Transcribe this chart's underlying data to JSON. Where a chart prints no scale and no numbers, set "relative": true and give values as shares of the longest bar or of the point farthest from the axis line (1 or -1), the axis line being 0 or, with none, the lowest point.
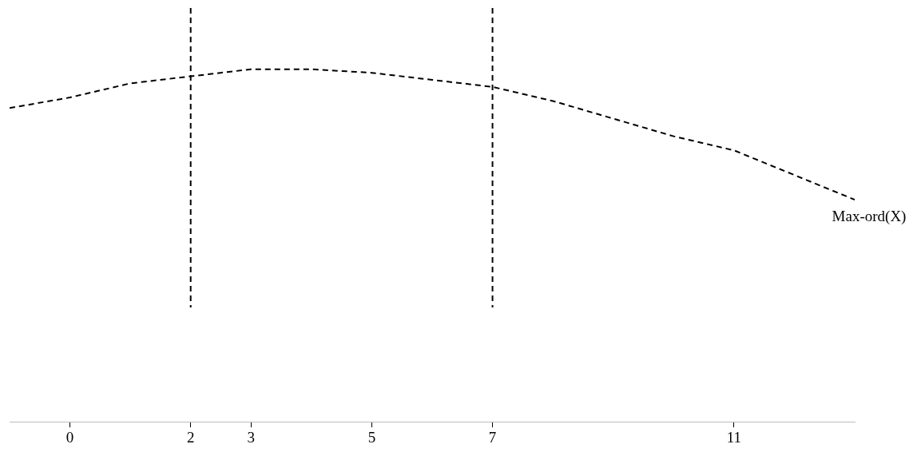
{
  "chart_data": {
    "type": "line",
    "relative": true,
    "x": [
      -1,
      0,
      1,
      2,
      3,
      4,
      5,
      6,
      7,
      8,
      9,
      10,
      11,
      12,
      13
    ],
    "xlim": [
      -1,
      13
    ],
    "xticks": [
      0,
      2,
      3,
      5,
      7,
      11
    ],
    "tick_labels": "x",
    "series": [
      {
        "name": "Max-ord(X)",
        "color": "#000000",
        "values": [
          0.89,
          0.92,
          0.96,
          0.98,
          1,
          1,
          0.99,
          0.97,
          0.95,
          0.91,
          0.86,
          0.81,
          0.77,
          0.7,
          0.63
        ]
      }
    ],
    "ref_lines": [
      {
        "axis": "x",
        "value": 2,
        "color": "#000000",
        "line_style": "dashed"
      },
      {
        "axis": "x",
        "value": 7,
        "color": "#000000",
        "line_style": "dashed"
      }
    ],
    "line_style": "dashed",
    "marker": "none",
    "grid": false,
    "legend": false
  }
}
